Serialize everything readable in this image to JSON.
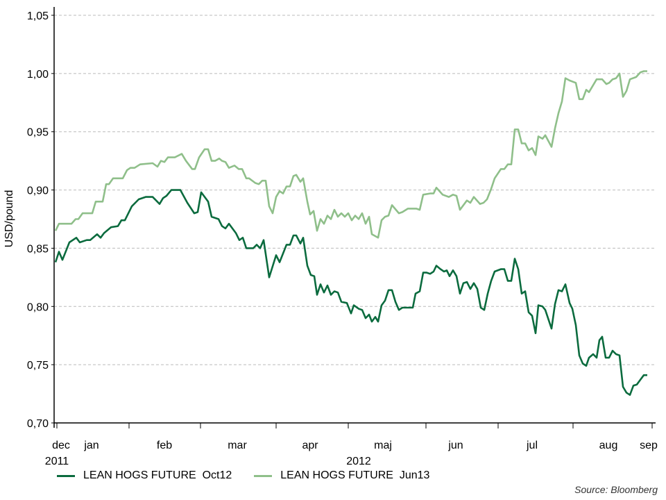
{
  "chart_data": {
    "type": "line",
    "title": "",
    "xlabel": "",
    "ylabel": "USD/pound",
    "ylim": [
      0.7,
      1.05
    ],
    "yticks": [
      0.7,
      0.75,
      0.8,
      0.85,
      0.9,
      0.95,
      1.0,
      1.05
    ],
    "ytick_labels": [
      "0,70",
      "0,75",
      "0,80",
      "0,85",
      "0,90",
      "0,95",
      "1,00",
      "1,05"
    ],
    "x_unit": "trading days since start",
    "xlim": [
      -0.4,
      173
    ],
    "month_boundaries": [
      0.4,
      21.2,
      41.8,
      63.6,
      84.4,
      106.8,
      127.6,
      149.2,
      172
    ],
    "month_labels": [
      {
        "label": "dec",
        "x": 1.6
      },
      {
        "label": "jan",
        "x": 10.4
      },
      {
        "label": "feb",
        "x": 31.4
      },
      {
        "label": "mar",
        "x": 52.4
      },
      {
        "label": "apr",
        "x": 73.4
      },
      {
        "label": "maj",
        "x": 94.4
      },
      {
        "label": "jun",
        "x": 115.4
      },
      {
        "label": "jul",
        "x": 137.4
      },
      {
        "label": "aug",
        "x": 159.4
      },
      {
        "label": "sep",
        "x": 171
      }
    ],
    "year_labels": [
      {
        "label": "2011",
        "x": 0
      },
      {
        "label": "2012",
        "x": 87
      }
    ],
    "grid": "horizontal dashed",
    "legend_position": "bottom",
    "series": [
      {
        "name": "LEAN HOGS FUTURE  Oct12",
        "color": "#0b6b3e",
        "points": [
          [
            0,
            0.838
          ],
          [
            1,
            0.847
          ],
          [
            2,
            0.84
          ],
          [
            4,
            0.855
          ],
          [
            6,
            0.859
          ],
          [
            7,
            0.855
          ],
          [
            9,
            0.857
          ],
          [
            10,
            0.857
          ],
          [
            12,
            0.862
          ],
          [
            13,
            0.859
          ],
          [
            14,
            0.863
          ],
          [
            16,
            0.868
          ],
          [
            18,
            0.869
          ],
          [
            19,
            0.874
          ],
          [
            20,
            0.874
          ],
          [
            22,
            0.886
          ],
          [
            24,
            0.892
          ],
          [
            26,
            0.894
          ],
          [
            28,
            0.894
          ],
          [
            30,
            0.888
          ],
          [
            31,
            0.893
          ],
          [
            32,
            0.895
          ],
          [
            33.4,
            0.9
          ],
          [
            36,
            0.9
          ],
          [
            38,
            0.889
          ],
          [
            40,
            0.88
          ],
          [
            41,
            0.881
          ],
          [
            42,
            0.898
          ],
          [
            44,
            0.89
          ],
          [
            45,
            0.877
          ],
          [
            47,
            0.875
          ],
          [
            48,
            0.869
          ],
          [
            49,
            0.867
          ],
          [
            50,
            0.871
          ],
          [
            52,
            0.863
          ],
          [
            53,
            0.857
          ],
          [
            54,
            0.859
          ],
          [
            55,
            0.85
          ],
          [
            57,
            0.85
          ],
          [
            58,
            0.853
          ],
          [
            59,
            0.85
          ],
          [
            60,
            0.857
          ],
          [
            61.6,
            0.825
          ],
          [
            63.6,
            0.844
          ],
          [
            64.6,
            0.838
          ],
          [
            66.6,
            0.853
          ],
          [
            67.6,
            0.853
          ],
          [
            68.6,
            0.861
          ],
          [
            69.4,
            0.861
          ],
          [
            70.6,
            0.854
          ],
          [
            71.4,
            0.859
          ],
          [
            72.6,
            0.835
          ],
          [
            73.6,
            0.827
          ],
          [
            74.6,
            0.826
          ],
          [
            75.4,
            0.81
          ],
          [
            76.4,
            0.819
          ],
          [
            77.4,
            0.812
          ],
          [
            78.4,
            0.818
          ],
          [
            79.4,
            0.81
          ],
          [
            80.4,
            0.813
          ],
          [
            81.4,
            0.812
          ],
          [
            82.4,
            0.804
          ],
          [
            84,
            0.803
          ],
          [
            85.2,
            0.794
          ],
          [
            86,
            0.801
          ],
          [
            87.4,
            0.798
          ],
          [
            88.4,
            0.797
          ],
          [
            89.4,
            0.79
          ],
          [
            90.4,
            0.793
          ],
          [
            91.2,
            0.787
          ],
          [
            92.2,
            0.791
          ],
          [
            93,
            0.787
          ],
          [
            94,
            0.801
          ],
          [
            95,
            0.805
          ],
          [
            96,
            0.814
          ],
          [
            97,
            0.814
          ],
          [
            98,
            0.804
          ],
          [
            99,
            0.797
          ],
          [
            100,
            0.799
          ],
          [
            103,
            0.799
          ],
          [
            103.8,
            0.811
          ],
          [
            105,
            0.813
          ],
          [
            106,
            0.829
          ],
          [
            107,
            0.829
          ],
          [
            108,
            0.828
          ],
          [
            109,
            0.83
          ],
          [
            109.8,
            0.835
          ],
          [
            111,
            0.832
          ],
          [
            112,
            0.83
          ],
          [
            112.8,
            0.831
          ],
          [
            113.6,
            0.826
          ],
          [
            114.6,
            0.831
          ],
          [
            115.6,
            0.826
          ],
          [
            116.6,
            0.811
          ],
          [
            117.6,
            0.82
          ],
          [
            118.6,
            0.821
          ],
          [
            119.6,
            0.815
          ],
          [
            120.6,
            0.82
          ],
          [
            121.6,
            0.815
          ],
          [
            122.6,
            0.799
          ],
          [
            123.6,
            0.797
          ],
          [
            124.6,
            0.811
          ],
          [
            125.6,
            0.822
          ],
          [
            126.6,
            0.83
          ],
          [
            128.4,
            0.832
          ],
          [
            129.4,
            0.832
          ],
          [
            130.4,
            0.822
          ],
          [
            131.4,
            0.822
          ],
          [
            132.4,
            0.841
          ],
          [
            133.4,
            0.832
          ],
          [
            134.4,
            0.811
          ],
          [
            135.4,
            0.813
          ],
          [
            136.4,
            0.795
          ],
          [
            137.4,
            0.792
          ],
          [
            138.4,
            0.777
          ],
          [
            139.2,
            0.801
          ],
          [
            140.4,
            0.8
          ],
          [
            141.2,
            0.797
          ],
          [
            143,
            0.781
          ],
          [
            144,
            0.802
          ],
          [
            145,
            0.814
          ],
          [
            146,
            0.813
          ],
          [
            147,
            0.819
          ],
          [
            148.2,
            0.803
          ],
          [
            149,
            0.798
          ],
          [
            150,
            0.784
          ],
          [
            151,
            0.758
          ],
          [
            152,
            0.751
          ],
          [
            153,
            0.749
          ],
          [
            153.8,
            0.756
          ],
          [
            155,
            0.759
          ],
          [
            156,
            0.756
          ],
          [
            156.8,
            0.771
          ],
          [
            157.6,
            0.774
          ],
          [
            158.6,
            0.756
          ],
          [
            159.6,
            0.756
          ],
          [
            160.6,
            0.762
          ],
          [
            161.6,
            0.759
          ],
          [
            162.6,
            0.758
          ],
          [
            163.6,
            0.731
          ],
          [
            164.6,
            0.726
          ],
          [
            165.6,
            0.724
          ],
          [
            166.6,
            0.732
          ],
          [
            167.6,
            0.733
          ],
          [
            168.6,
            0.737
          ],
          [
            169.6,
            0.741
          ],
          [
            170.6,
            0.741
          ]
        ]
      },
      {
        "name": "LEAN HOGS FUTURE  Jun13",
        "color": "#8fbf8a",
        "points": [
          [
            0,
            0.865
          ],
          [
            1,
            0.871
          ],
          [
            4.6,
            0.871
          ],
          [
            5.8,
            0.875
          ],
          [
            6.6,
            0.875
          ],
          [
            7.8,
            0.88
          ],
          [
            10.6,
            0.88
          ],
          [
            11.6,
            0.89
          ],
          [
            13.6,
            0.89
          ],
          [
            14.6,
            0.905
          ],
          [
            15.4,
            0.905
          ],
          [
            16.6,
            0.91
          ],
          [
            19.4,
            0.91
          ],
          [
            20.6,
            0.917
          ],
          [
            21.6,
            0.919
          ],
          [
            22.8,
            0.919
          ],
          [
            24.4,
            0.922
          ],
          [
            28,
            0.923
          ],
          [
            29.4,
            0.92
          ],
          [
            30.4,
            0.925
          ],
          [
            31.4,
            0.924
          ],
          [
            32.4,
            0.928
          ],
          [
            34.4,
            0.928
          ],
          [
            36.4,
            0.931
          ],
          [
            37.6,
            0.925
          ],
          [
            39.4,
            0.918
          ],
          [
            40.2,
            0.918
          ],
          [
            41.4,
            0.928
          ],
          [
            43,
            0.935
          ],
          [
            44,
            0.935
          ],
          [
            45,
            0.925
          ],
          [
            46,
            0.925
          ],
          [
            47.2,
            0.927
          ],
          [
            48,
            0.925
          ],
          [
            49,
            0.924
          ],
          [
            50,
            0.919
          ],
          [
            51.6,
            0.921
          ],
          [
            52.8,
            0.918
          ],
          [
            53.8,
            0.918
          ],
          [
            55,
            0.91
          ],
          [
            55.8,
            0.91
          ],
          [
            57.6,
            0.906
          ],
          [
            58.6,
            0.905
          ],
          [
            59.6,
            0.908
          ],
          [
            60.6,
            0.908
          ],
          [
            61.6,
            0.886
          ],
          [
            62.6,
            0.88
          ],
          [
            63.6,
            0.894
          ],
          [
            64.6,
            0.899
          ],
          [
            65.6,
            0.897
          ],
          [
            66.6,
            0.903
          ],
          [
            67.6,
            0.903
          ],
          [
            68.6,
            0.912
          ],
          [
            69.4,
            0.913
          ],
          [
            70.6,
            0.907
          ],
          [
            71.4,
            0.91
          ],
          [
            72.6,
            0.89
          ],
          [
            73.4,
            0.879
          ],
          [
            74.4,
            0.882
          ],
          [
            75.4,
            0.865
          ],
          [
            76.4,
            0.875
          ],
          [
            77.4,
            0.871
          ],
          [
            78.4,
            0.878
          ],
          [
            79.4,
            0.875
          ],
          [
            80.4,
            0.883
          ],
          [
            81.4,
            0.877
          ],
          [
            82.4,
            0.88
          ],
          [
            83.4,
            0.877
          ],
          [
            84.4,
            0.88
          ],
          [
            85.4,
            0.874
          ],
          [
            86.4,
            0.878
          ],
          [
            87.4,
            0.875
          ],
          [
            88.4,
            0.88
          ],
          [
            89.4,
            0.871
          ],
          [
            90.4,
            0.877
          ],
          [
            91.2,
            0.862
          ],
          [
            93,
            0.859
          ],
          [
            94,
            0.874
          ],
          [
            95,
            0.877
          ],
          [
            96,
            0.878
          ],
          [
            97,
            0.887
          ],
          [
            99,
            0.88
          ],
          [
            100,
            0.881
          ],
          [
            101.6,
            0.884
          ],
          [
            104,
            0.884
          ],
          [
            105,
            0.883
          ],
          [
            106,
            0.896
          ],
          [
            108,
            0.897
          ],
          [
            109,
            0.897
          ],
          [
            109.8,
            0.902
          ],
          [
            111.6,
            0.896
          ],
          [
            113.4,
            0.894
          ],
          [
            114.6,
            0.896
          ],
          [
            115.6,
            0.895
          ],
          [
            116.6,
            0.883
          ],
          [
            118.6,
            0.891
          ],
          [
            119.6,
            0.889
          ],
          [
            120.6,
            0.894
          ],
          [
            122.4,
            0.888
          ],
          [
            123.4,
            0.889
          ],
          [
            124.4,
            0.892
          ],
          [
            125.6,
            0.901
          ],
          [
            126.6,
            0.91
          ],
          [
            128.4,
            0.918
          ],
          [
            129.4,
            0.918
          ],
          [
            130.4,
            0.922
          ],
          [
            131.4,
            0.922
          ],
          [
            132.4,
            0.952
          ],
          [
            133.4,
            0.952
          ],
          [
            134.4,
            0.94
          ],
          [
            135.4,
            0.94
          ],
          [
            136.4,
            0.934
          ],
          [
            137.4,
            0.936
          ],
          [
            138.4,
            0.93
          ],
          [
            139.2,
            0.946
          ],
          [
            140.4,
            0.944
          ],
          [
            141.2,
            0.947
          ],
          [
            143,
            0.937
          ],
          [
            144,
            0.953
          ],
          [
            145,
            0.966
          ],
          [
            146,
            0.976
          ],
          [
            147,
            0.996
          ],
          [
            148.2,
            0.994
          ],
          [
            150,
            0.992
          ],
          [
            151,
            0.978
          ],
          [
            152,
            0.978
          ],
          [
            153,
            0.986
          ],
          [
            153.8,
            0.984
          ],
          [
            156,
            0.995
          ],
          [
            157.6,
            0.995
          ],
          [
            158.8,
            0.991
          ],
          [
            159.6,
            0.992
          ],
          [
            160.6,
            0.995
          ],
          [
            161.6,
            0.996
          ],
          [
            162.6,
            1.0
          ],
          [
            163.6,
            0.98
          ],
          [
            164.6,
            0.985
          ],
          [
            165.6,
            0.995
          ],
          [
            167.4,
            0.997
          ],
          [
            168.6,
            1.001
          ],
          [
            169.6,
            1.002
          ],
          [
            170.6,
            1.002
          ]
        ]
      }
    ],
    "source": "Source: Bloomberg"
  }
}
